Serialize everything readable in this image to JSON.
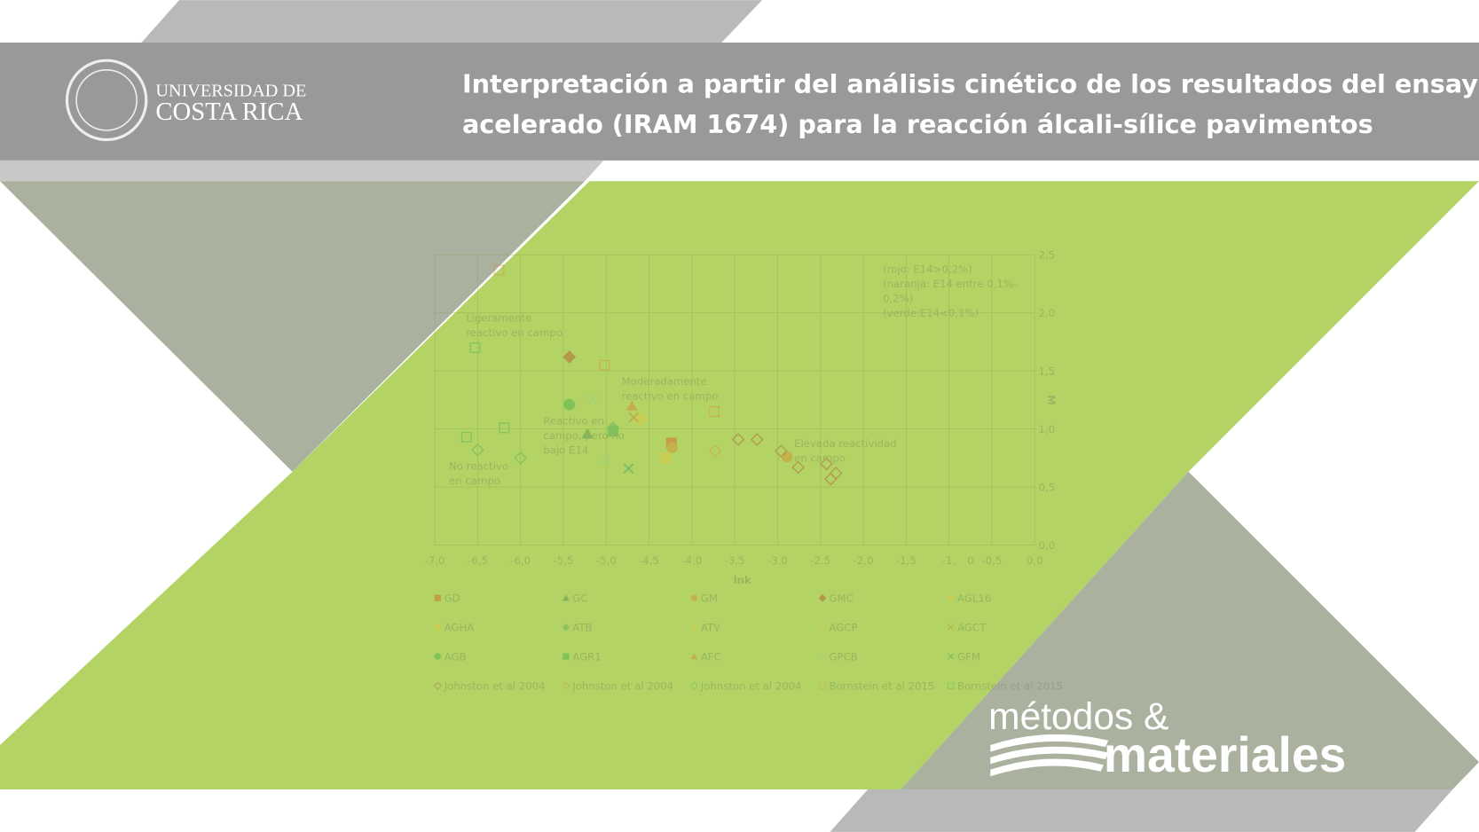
{
  "header": {
    "logo_line1": "UNIVERSIDAD DE",
    "logo_line2": "COSTA RICA",
    "title_line1": "Interpretación a partir del análisis cinético de los resultados del ensayo",
    "title_line2": "acelerado (IRAM 1674) para la reacción álcali-sílice pavimentos"
  },
  "brand": {
    "line1": "métodos &",
    "line2": "materiales"
  },
  "chart_data": {
    "type": "scatter",
    "xlabel": "lnk",
    "ylabel": "M",
    "xlim": [
      -7,
      0
    ],
    "ylim": [
      0,
      2.5
    ],
    "xticks": [
      {
        "value": -7,
        "label": "-7,0"
      },
      {
        "value": -6.5,
        "label": "-6,5"
      },
      {
        "value": -6,
        "label": "-6,0"
      },
      {
        "value": -5.5,
        "label": "-5,5"
      },
      {
        "value": -5,
        "label": "-5,0"
      },
      {
        "value": -4.5,
        "label": "-4,5"
      },
      {
        "value": -4,
        "label": "-4,0"
      },
      {
        "value": -3.5,
        "label": "-3,5"
      },
      {
        "value": -3,
        "label": "-3,0"
      },
      {
        "value": -2.5,
        "label": "-2,5"
      },
      {
        "value": -2,
        "label": "-2,0"
      },
      {
        "value": -1.5,
        "label": "-1,5"
      },
      {
        "value": -1,
        "label": "-1,"
      },
      {
        "value": -0.75,
        "label": "0"
      },
      {
        "value": -0.5,
        "label": "-0,5"
      },
      {
        "value": 0,
        "label": "0,0"
      }
    ],
    "yticks": [
      {
        "value": 0,
        "label": "0,0"
      },
      {
        "value": 0.5,
        "label": "0,5"
      },
      {
        "value": 1,
        "label": "1,0"
      },
      {
        "value": 1.5,
        "label": "1,5"
      },
      {
        "value": 2,
        "label": "2,0"
      },
      {
        "value": 2.5,
        "label": "2,5"
      }
    ],
    "grid": true,
    "annotations": [
      {
        "lines": [
          "(rojo: E14>0,2%)",
          "(naranja: E14 entre 0,1%-",
          "0,2%)",
          "(verde:E14<0,1%)"
        ]
      },
      {
        "lines": [
          "Ligeramente",
          "reactivo en campo"
        ]
      },
      {
        "lines": [
          "Moderadamente",
          "reactivo en campo"
        ]
      },
      {
        "lines": [
          "Reactivo en",
          "campo, pero no",
          "bajo E14"
        ]
      },
      {
        "lines": [
          "No  reactivo",
          "en campo"
        ]
      },
      {
        "lines": [
          "Elevada reactividad",
          "en campo"
        ]
      }
    ],
    "series": [
      {
        "name": "GD",
        "marker": "square",
        "color": "#d9541e",
        "x": [
          -4.24
        ],
        "values": [
          0.88
        ]
      },
      {
        "name": "GC",
        "marker": "triangle",
        "color": "#3a8a4a",
        "x": [
          -5.22
        ],
        "values": [
          0.96
        ]
      },
      {
        "name": "GM",
        "marker": "circle",
        "color": "#d9822b",
        "x": [
          -2.89,
          -4.23
        ],
        "values": [
          0.76,
          0.84
        ]
      },
      {
        "name": "GMC",
        "marker": "diamond",
        "color": "#b5442a",
        "x": [
          -5.43
        ],
        "values": [
          1.62
        ]
      },
      {
        "name": "AGL16",
        "marker": "diamond",
        "color": "#e3c93a",
        "x": [
          -4.61
        ],
        "values": [
          1.08
        ]
      },
      {
        "name": "AGHA",
        "marker": "square",
        "color": "#e8c43a",
        "x": [
          -4.31
        ],
        "values": [
          0.75
        ]
      },
      {
        "name": "ATB",
        "marker": "diamond",
        "color": "#5fae5a",
        "x": [
          -4.92
        ],
        "values": [
          1.01
        ]
      },
      {
        "name": "ATV",
        "marker": "triangle",
        "color": "#d9c93a",
        "x": [
          -4.57
        ],
        "values": [
          1.1
        ]
      },
      {
        "name": "AGCP",
        "marker": "x",
        "color": "#d9c93a",
        "x": [
          -4.65
        ],
        "values": [
          1.12
        ]
      },
      {
        "name": "AGCT",
        "marker": "x",
        "color": "#c87a30",
        "x": [
          -4.68
        ],
        "values": [
          1.1
        ]
      },
      {
        "name": "AGB",
        "marker": "circle",
        "color": "#3aaa4a",
        "x": [
          -5.43
        ],
        "values": [
          1.21
        ]
      },
      {
        "name": "AGR1",
        "marker": "square",
        "color": "#3aaa4a",
        "x": [
          -4.92
        ],
        "values": [
          0.98
        ]
      },
      {
        "name": "AFC",
        "marker": "triangle",
        "color": "#e07b39",
        "x": [
          -4.7
        ],
        "values": [
          1.2
        ]
      },
      {
        "name": "GPCB",
        "marker": "x",
        "color": "#8fd08a",
        "x": [
          -5.16,
          -5.01
        ],
        "values": [
          1.26,
          0.73
        ]
      },
      {
        "name": "GFM",
        "marker": "x",
        "color": "#2f9a5a",
        "x": [
          -4.74
        ],
        "values": [
          0.66
        ]
      },
      {
        "name": "Johnston et al 2004",
        "marker": "diamond-open",
        "color": "#b04a3a",
        "x": [
          -3.46,
          -3.24,
          -2.96,
          -2.76,
          -2.43,
          -2.32,
          -2.38
        ],
        "values": [
          0.91,
          0.91,
          0.81,
          0.67,
          0.7,
          0.62,
          0.57
        ]
      },
      {
        "name": "Johnston et al 2004",
        "marker": "diamond-open",
        "color": "#e08a3a",
        "x": [
          -3.73
        ],
        "values": [
          0.81
        ]
      },
      {
        "name": "Johnston et al 2004",
        "marker": "diamond-open",
        "color": "#4aaa5a",
        "x": [
          -6.5,
          -6.0
        ],
        "values": [
          0.82,
          0.75
        ]
      },
      {
        "name": "Bornstein et al 2015",
        "marker": "square-open",
        "color": "#e08a3a",
        "x": [
          -6.25,
          -5.02,
          -3.74
        ],
        "values": [
          2.37,
          1.55,
          1.15
        ]
      },
      {
        "name": "Bornstein et al 2015",
        "marker": "square-open",
        "color": "#4aaa5a",
        "x": [
          -6.53,
          -6.63,
          -6.19
        ],
        "values": [
          1.7,
          0.93,
          1.01
        ]
      }
    ]
  }
}
